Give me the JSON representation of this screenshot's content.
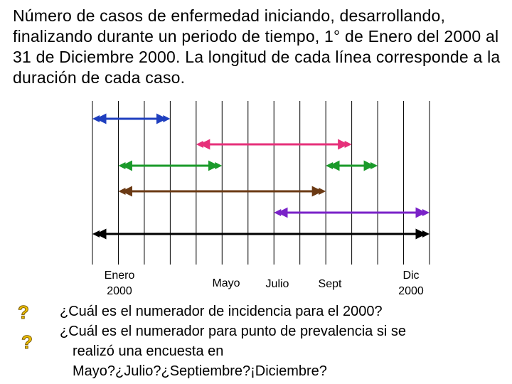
{
  "title": "Número de casos de enfermedad iniciando, desarrollando, finalizando durante un periodo de tiempo, 1° de Enero del 2000 al 31 de Diciembre 2000. La longitud de cada línea corresponde a la duración de cada caso.",
  "axis_labels": [
    {
      "id": "enero",
      "line1": "Enero",
      "line2": "2000"
    },
    {
      "id": "mayo",
      "line1": "Mayo",
      "line2": ""
    },
    {
      "id": "julio",
      "line1": "Julio",
      "line2": ""
    },
    {
      "id": "sept",
      "line1": "Sept",
      "line2": ""
    },
    {
      "id": "dic",
      "line1": "Dic",
      "line2": "2000"
    }
  ],
  "cases": [
    {
      "color": "#1f3fbf",
      "start": 0,
      "end": 3
    },
    {
      "color": "#e6307a",
      "start": 4,
      "end": 10
    },
    {
      "color": "#1a9a2a",
      "start": 1,
      "end": 5
    },
    {
      "color": "#1a9a2a",
      "start": 9,
      "end": 11
    },
    {
      "color": "#6b3a14",
      "start": 1,
      "end": 9
    },
    {
      "color": "#7a22c8",
      "start": 7,
      "end": 13
    },
    {
      "color": "#000000",
      "start": 0,
      "end": 13
    }
  ],
  "grid": {
    "columns": 13,
    "line_color": "#000000"
  },
  "questions": {
    "q1": "¿Cuál es el numerador de incidencia para el 2000?",
    "q2": "¿Cuál es el numerador para punto de prevalencia si se",
    "q3": "realizó una encuesta en",
    "q4": "Mayo?¿Julio?¿Septiembre?¡Diciembre?"
  },
  "icons": {
    "question": "question-mark-icon",
    "question_color": "#f2c200"
  }
}
